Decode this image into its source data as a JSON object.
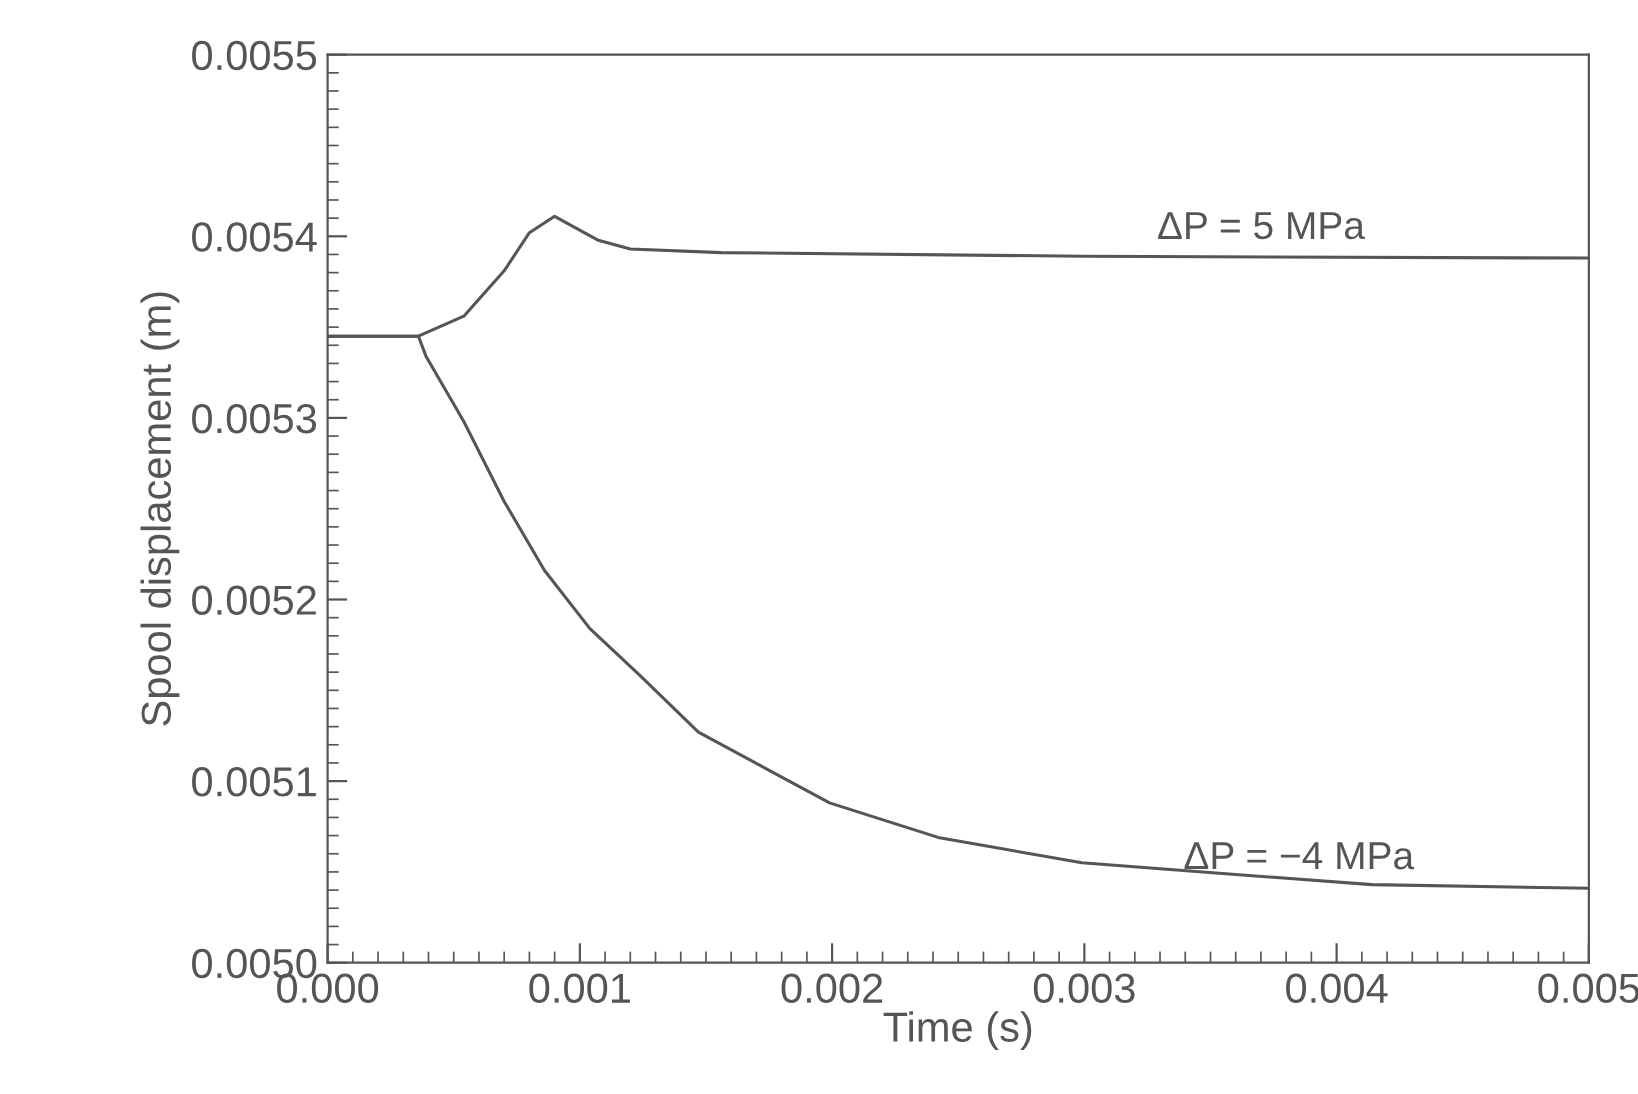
{
  "chart_data": {
    "type": "line",
    "xlabel": "Time (s)",
    "ylabel": "Spool displacement (m)",
    "xlim": [
      0,
      0.005
    ],
    "xticks": [
      {
        "value": 0,
        "label": "0.000"
      },
      {
        "value": 0.001,
        "label": "0.001"
      },
      {
        "value": 0.002,
        "label": "0.002"
      },
      {
        "value": 0.003,
        "label": "0.003"
      },
      {
        "value": 0.004,
        "label": "0.004"
      },
      {
        "value": 0.005,
        "label": "0.005"
      }
    ],
    "ylim": [
      0.005,
      0.0055
    ],
    "yticks": [
      {
        "value": 0.005,
        "label": "0.0050"
      },
      {
        "value": 0.0051,
        "label": "0.0051"
      },
      {
        "value": 0.0052,
        "label": "0.0052"
      },
      {
        "value": 0.0053,
        "label": "0.0053"
      },
      {
        "value": 0.0054,
        "label": "0.0054"
      },
      {
        "value": 0.0055,
        "label": "0.0055"
      }
    ],
    "grid": false,
    "legend": false,
    "marker": "none",
    "line_style": "solid",
    "series": [
      {
        "name": "ΔP = 5 MPa",
        "color": "#555555",
        "x": [
          0,
          0.00036,
          0.00054,
          0.0007,
          0.0008,
          0.0009,
          0.00107,
          0.0012,
          0.00156,
          0.003,
          0.005
        ],
        "values": [
          0.005345,
          0.005345,
          0.005356,
          0.005381,
          0.005402,
          0.005411,
          0.005398,
          0.005393,
          0.005391,
          0.005389,
          0.005388
        ]
      },
      {
        "name": "ΔP = −4 MPa",
        "color": "#555555",
        "x": [
          0,
          0.00036,
          0.00039,
          0.00054,
          0.0007,
          0.00086,
          0.00104,
          0.00124,
          0.00147,
          0.00199,
          0.00242,
          0.00299,
          0.00356,
          0.00414,
          0.005
        ],
        "values": [
          0.005345,
          0.005345,
          0.005334,
          0.005298,
          0.005254,
          0.005216,
          0.005184,
          0.005158,
          0.005127,
          0.005088,
          0.005069,
          0.005055,
          0.005049,
          0.005043,
          0.005041
        ]
      }
    ]
  }
}
